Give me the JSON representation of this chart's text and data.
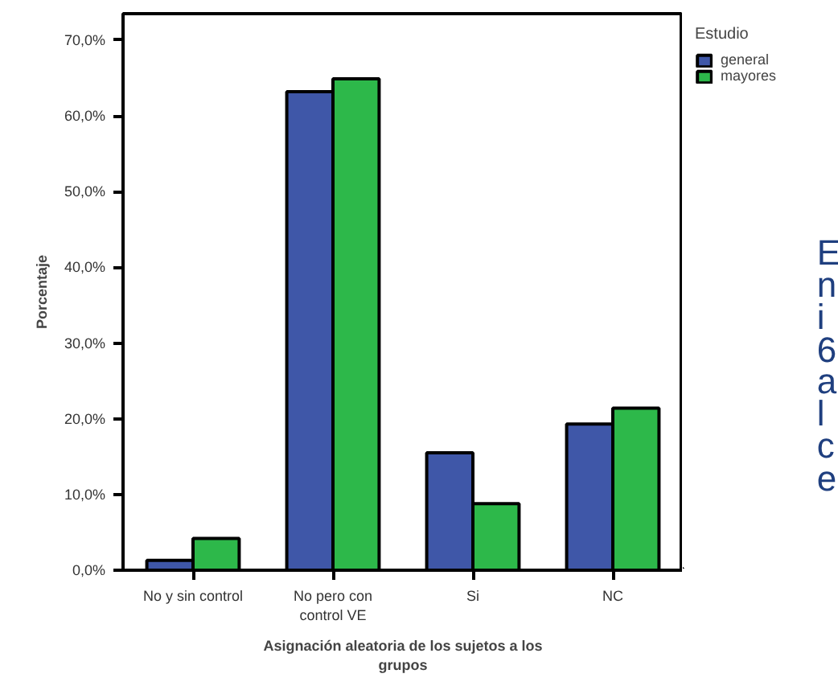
{
  "chart_data": {
    "type": "bar",
    "categories": [
      "No y sin control",
      "No pero con\ncontrol VE",
      "Si",
      "NC"
    ],
    "series": [
      {
        "name": "general",
        "color": "#3f57a8",
        "values": [
          1.3,
          63.2,
          15.5,
          19.3
        ]
      },
      {
        "name": "mayores",
        "color": "#2db84a",
        "values": [
          4.2,
          64.9,
          8.8,
          21.4
        ]
      }
    ],
    "xlabel": "Asignación aleatoria de los sujetos a los\ngrupos",
    "ylabel": "Porcentaje",
    "legend_title": "Estudio",
    "legend": "top right",
    "ylim": [
      0,
      73.5
    ],
    "yticks": [
      {
        "value": 0,
        "label": "0,0%"
      },
      {
        "value": 10,
        "label": "10,0%"
      },
      {
        "value": 20,
        "label": "20,0%"
      },
      {
        "value": 30,
        "label": "30,0%"
      },
      {
        "value": 40,
        "label": "40,0%"
      },
      {
        "value": 50,
        "label": "50,0%"
      },
      {
        "value": 60,
        "label": "60,0%"
      },
      {
        "value": 70,
        "label": "70,0%"
      }
    ],
    "grid": false,
    "annotations": [
      "E",
      "n",
      "i",
      "6",
      "a",
      "l",
      "c",
      "e"
    ]
  }
}
